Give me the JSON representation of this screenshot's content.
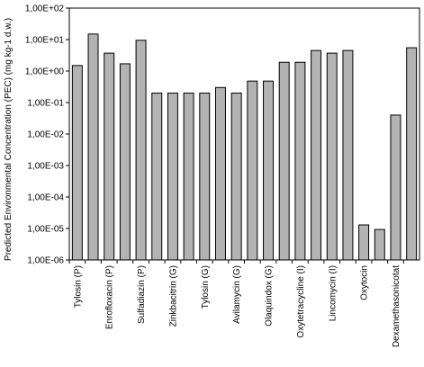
{
  "chart_data": {
    "type": "bar",
    "title": "",
    "xlabel": "",
    "ylabel": "Predicted Environmental Concentration (PEC) (mg kg-1 d.w.)",
    "y_scale": "log",
    "ylim": [
      1e-06,
      100
    ],
    "grid": false,
    "legend": "none",
    "y_ticks": [
      {
        "value": 100,
        "label": "1,00E+02"
      },
      {
        "value": 10,
        "label": "1,00E+01"
      },
      {
        "value": 1,
        "label": "1,00E+00"
      },
      {
        "value": 0.1,
        "label": "1,00E-01"
      },
      {
        "value": 0.01,
        "label": "1,00E-02"
      },
      {
        "value": 0.001,
        "label": "1,00E-03"
      },
      {
        "value": 0.0001,
        "label": "1,00E-04"
      },
      {
        "value": 1e-05,
        "label": "1,00E-05"
      },
      {
        "value": 1e-06,
        "label": "1,00E-06"
      }
    ],
    "x_tick_labels": [
      "Tylosin (P)",
      "Enrofloxacin (P)",
      "Sulfadiazin (P)",
      "Zinkbacitrin (G)",
      "Tylosin (G)",
      "Avilamycin (G)",
      "Olaquindox (G)",
      "Oxytetracycline (I)",
      "Lincomycin (I)",
      "Oxytocin",
      "Dexamethasonicotat"
    ],
    "values": [
      1.5,
      15,
      3.7,
      1.7,
      9.5,
      0.2,
      0.2,
      0.2,
      0.2,
      0.3,
      0.2,
      0.48,
      0.48,
      1.9,
      1.9,
      4.5,
      3.7,
      4.5,
      1.3e-05,
      9.3e-06,
      0.04,
      5.5
    ],
    "bar_color": "#b3b3b3",
    "bar_edge_color": "#000000"
  }
}
